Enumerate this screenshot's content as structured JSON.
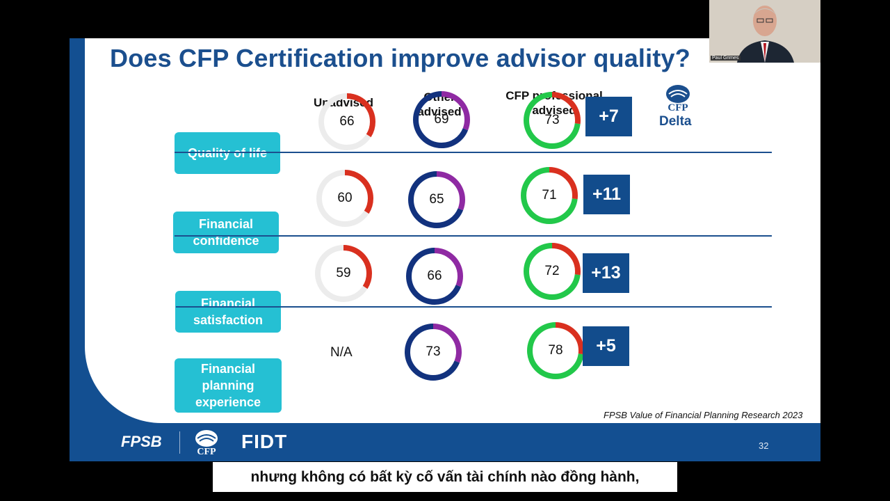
{
  "slide": {
    "title": "Does CFP Certification improve advisor quality?",
    "columns": {
      "unadvised": "Unadvised",
      "other_line1": "Other",
      "other_line2": "advised",
      "cfp_line1": "CFP professional",
      "cfp_line2": "advised",
      "delta_logo": "CFP",
      "delta": "Delta"
    },
    "rows": [
      {
        "label_lines": [
          "Quality of life"
        ],
        "unadvised": "66",
        "other": "69",
        "cfp": "73",
        "delta": "+7"
      },
      {
        "label_lines": [
          "Financial",
          "confidence"
        ],
        "unadvised": "60",
        "other": "65",
        "cfp": "71",
        "delta": "+11"
      },
      {
        "label_lines": [
          "Financial",
          "satisfaction"
        ],
        "unadvised": "59",
        "other": "66",
        "cfp": "72",
        "delta": "+13"
      },
      {
        "label_lines": [
          "Financial",
          "planning",
          "experience"
        ],
        "unadvised": "N/A",
        "other": "73",
        "cfp": "78",
        "delta": "+5"
      }
    ],
    "source": "FPSB Value of Financial Planning Research 2023",
    "footer": {
      "logo_fpsb": "FPSB",
      "logo_cfp": "CFP",
      "logo_fidt": "FIDT",
      "page": "32"
    },
    "colors": {
      "red": "#d9301f",
      "grey": "#ececec",
      "purple": "#8f2aa3",
      "navy": "#12327e",
      "green": "#22c84a",
      "teal": "#25c0d3",
      "brand": "#134f91"
    }
  },
  "webcam": {
    "name_tag": "Paul Grimes"
  },
  "subtitle": "nhưng không có bất kỳ cố vấn tài chính nào đồng hành,"
}
